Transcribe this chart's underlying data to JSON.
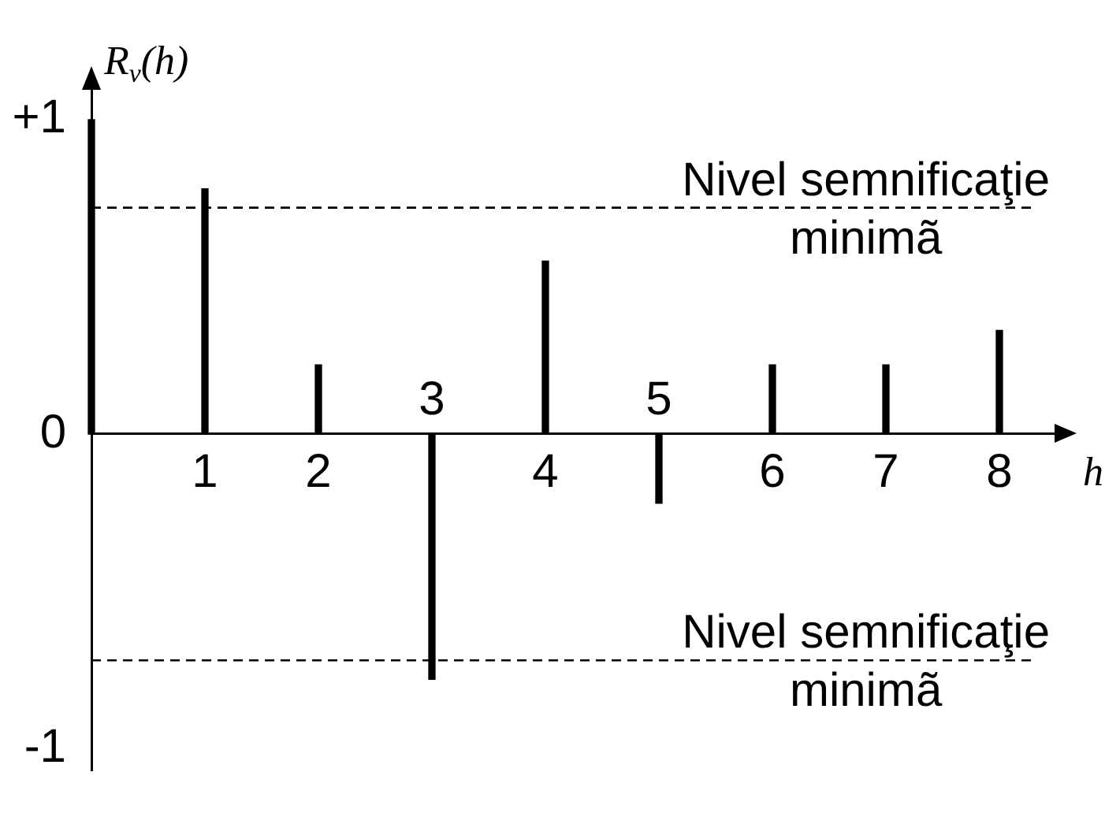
{
  "chart_data": {
    "type": "bar",
    "x": [
      0,
      1,
      2,
      3,
      4,
      5,
      6,
      7,
      8
    ],
    "values": [
      1,
      0.78,
      0.22,
      -0.78,
      0.55,
      -0.22,
      0.22,
      0.22,
      0.33
    ],
    "color": "#000000",
    "xlabel": "h",
    "ylabel": "R$_{v}$(h)",
    "xlim": [
      0,
      8.5
    ],
    "xticks": [
      1,
      2,
      4,
      6,
      7,
      8
    ],
    "ylim": [
      -1.07,
      1.1
    ],
    "yticks": [
      {
        "value": 1,
        "label": "+1"
      },
      0,
      -1
    ],
    "annotations": [
      {
        "text": "3",
        "x": 3,
        "y": 0
      },
      {
        "text": "5",
        "x": 5,
        "y": 0
      }
    ],
    "ref_lines": [
      {
        "axis": "y",
        "value": 0.72,
        "label": "Nivel semnificaţie minimã",
        "line_style": "dashed",
        "color": "#000000"
      },
      {
        "axis": "y",
        "value": -0.72,
        "label": "Nivel semnificaţie minimã",
        "line_style": "dashed",
        "color": "#000000"
      }
    ],
    "grid": false,
    "legend": false
  }
}
